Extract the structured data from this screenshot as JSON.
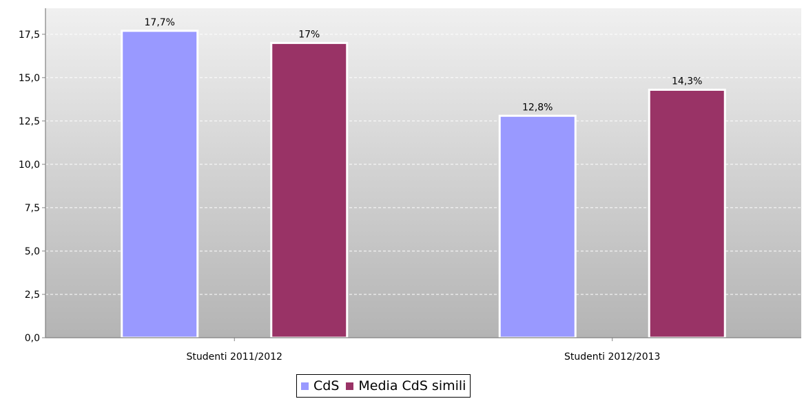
{
  "chart_data": {
    "type": "bar",
    "categories": [
      "Studenti 2011/2012",
      "Studenti 2012/2013"
    ],
    "series": [
      {
        "name": "CdS",
        "color": "#9999ff",
        "values": [
          17.7,
          12.8
        ],
        "labels": [
          "17,7%",
          "12,8%"
        ]
      },
      {
        "name": "Media CdS simili",
        "color": "#993366",
        "values": [
          17,
          14.3
        ],
        "labels": [
          "17%",
          "14,3%"
        ]
      }
    ],
    "yticks": [
      "0,0",
      "2,5",
      "5,0",
      "7,5",
      "10,0",
      "12,5",
      "15,0",
      "17,5"
    ],
    "ylim": [
      0,
      19
    ],
    "grid": true,
    "legend": "bottom-center"
  }
}
